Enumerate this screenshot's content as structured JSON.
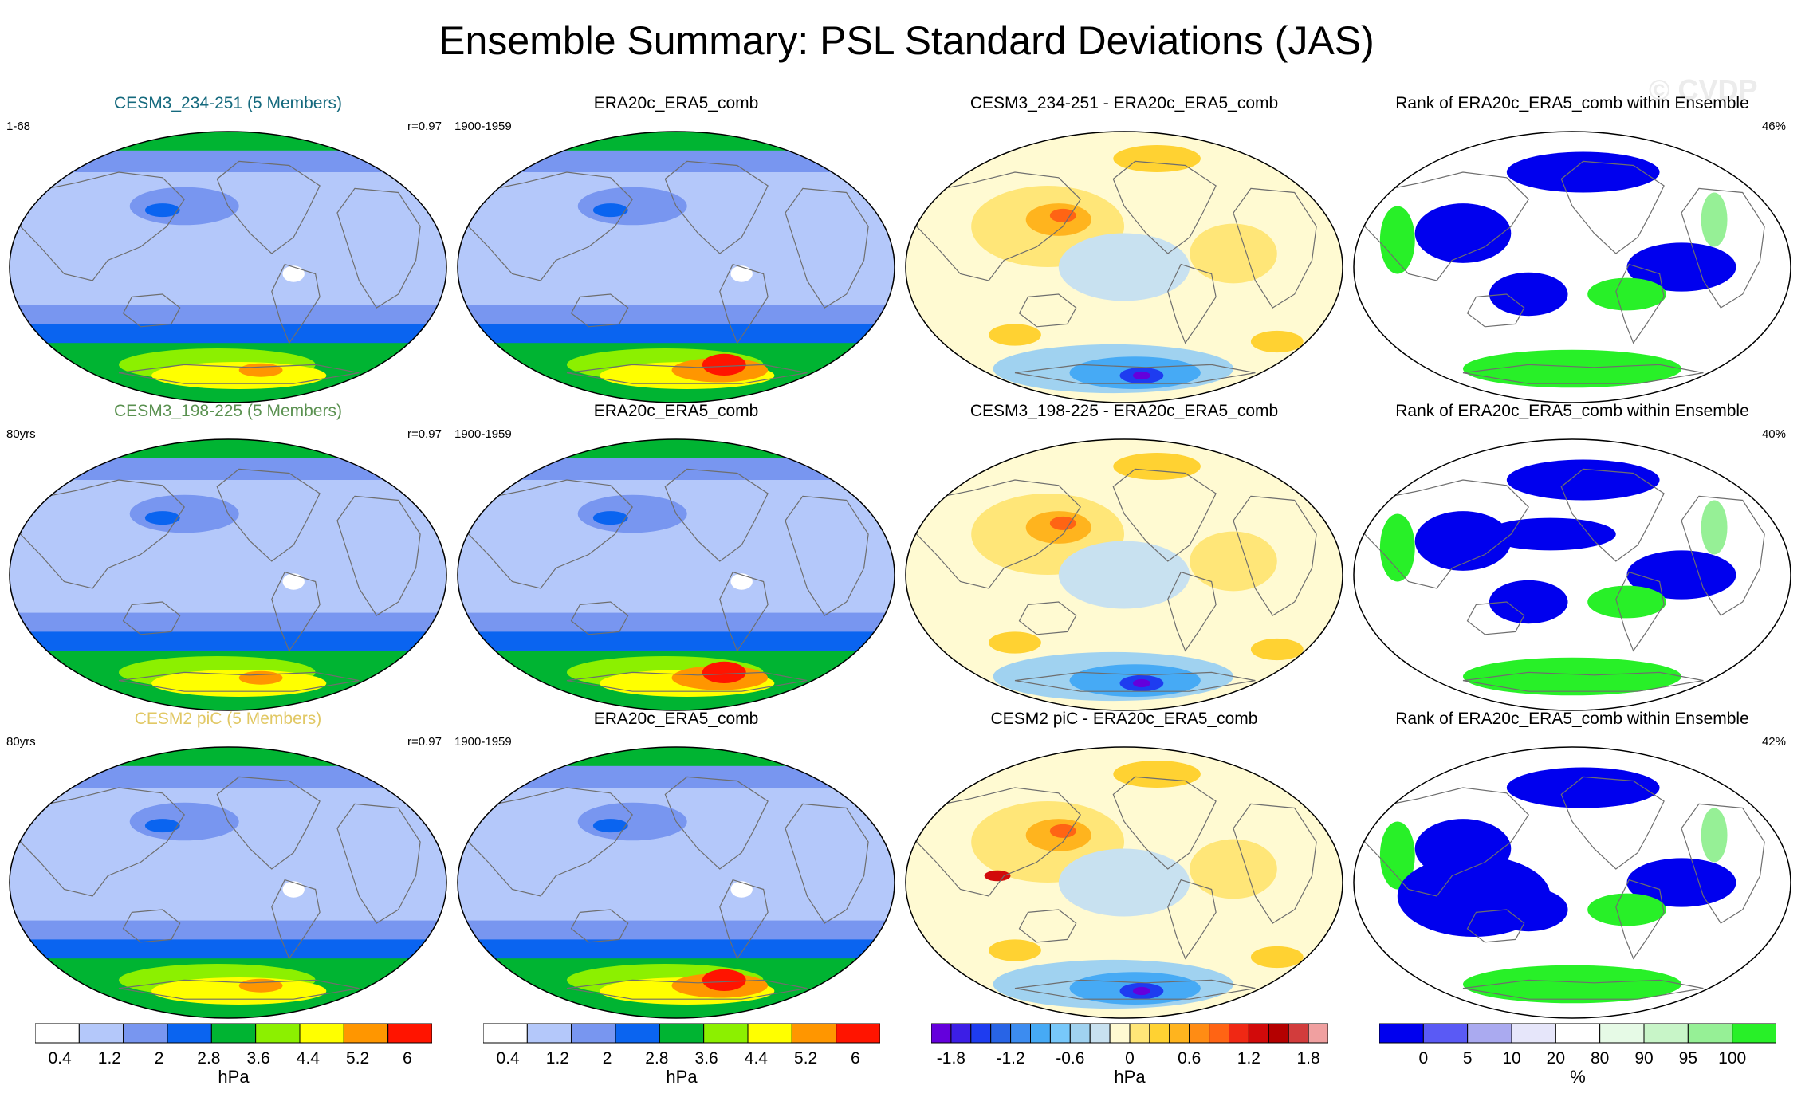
{
  "title": "Ensemble Summary: PSL Standard Deviations (JAS)",
  "watermark": "© CVDP",
  "colors": {
    "sd": [
      "#ffffff",
      "#b4c8fa",
      "#7896f0",
      "#0a64f0",
      "#00b432",
      "#8cf000",
      "#ffff00",
      "#ff9600",
      "#ff1400"
    ],
    "diff": [
      "#6400dc",
      "#3c1ee6",
      "#1e3cf0",
      "#2864e6",
      "#3c8cf0",
      "#46aaf5",
      "#78c8fa",
      "#a0d2f0",
      "#c8e1f0",
      "#fffad2",
      "#ffe678",
      "#ffd232",
      "#ffb41e",
      "#ff8c14",
      "#ff6414",
      "#f02814",
      "#d20a0a",
      "#b40000",
      "#d23c3c",
      "#f0a0a0"
    ],
    "rank": [
      "#0000ee",
      "#5a5af5",
      "#aaaaf0",
      "#e6e6fa",
      "#ffffff",
      "#e6fae6",
      "#c8f5c8",
      "#96f096",
      "#28f028"
    ],
    "row_title_colors": [
      "#14697d",
      "#5a9150",
      "#e1c864"
    ]
  },
  "rows": [
    {
      "ens_title": "CESM3_234-251 (5 Members)",
      "ens_left": "1-68",
      "ens_right": "r=0.97",
      "obs_title": "ERA20c_ERA5_comb",
      "obs_left": "1900-1959",
      "diff_title": "CESM3_234-251 - ERA20c_ERA5_comb",
      "rank_title": "Rank of ERA20c_ERA5_comb within Ensemble",
      "rank_pct": "46%"
    },
    {
      "ens_title": "CESM3_198-225 (5 Members)",
      "ens_left": "80yrs",
      "ens_right": "r=0.97",
      "obs_title": "ERA20c_ERA5_comb",
      "obs_left": "1900-1959",
      "diff_title": "CESM3_198-225 - ERA20c_ERA5_comb",
      "rank_title": "Rank of ERA20c_ERA5_comb within Ensemble",
      "rank_pct": "40%"
    },
    {
      "ens_title": "CESM2 piC (5 Members)",
      "ens_left": "80yrs",
      "ens_right": "r=0.97",
      "obs_title": "ERA20c_ERA5_comb",
      "obs_left": "1900-1959",
      "diff_title": "CESM2 piC - ERA20c_ERA5_comb",
      "rank_title": "Rank of ERA20c_ERA5_comb within Ensemble",
      "rank_pct": "42%"
    }
  ],
  "chart_data": [
    {
      "type": "heatmap",
      "name": "standard-deviation-colorbar",
      "units": "hPa",
      "levels": [
        0.4,
        0.8,
        1.2,
        1.6,
        2,
        2.4,
        2.8,
        3.2,
        3.6,
        4,
        4.4,
        4.8,
        5.2,
        5.6,
        6
      ],
      "tick_labels": [
        "0.4",
        "1.2",
        "2",
        "2.8",
        "3.6",
        "4.4",
        "5.2",
        "6"
      ]
    },
    {
      "type": "heatmap",
      "name": "difference-colorbar",
      "units": "hPa",
      "levels": [
        -1.8,
        -1.6,
        -1.4,
        -1.2,
        -1.0,
        -0.8,
        -0.6,
        -0.4,
        -0.2,
        0,
        0.2,
        0.4,
        0.6,
        0.8,
        1.0,
        1.2,
        1.4,
        1.6,
        1.8
      ],
      "tick_labels": [
        "-1.8",
        "-1.2",
        "-0.6",
        "0",
        "0.6",
        "1.2",
        "1.8"
      ]
    },
    {
      "type": "heatmap",
      "name": "rank-colorbar",
      "units": "%",
      "levels": [
        0,
        5,
        10,
        20,
        80,
        90,
        95,
        100
      ],
      "tick_labels": [
        "0",
        "5",
        "10",
        "20",
        "80",
        "90",
        "95",
        "100"
      ]
    }
  ]
}
